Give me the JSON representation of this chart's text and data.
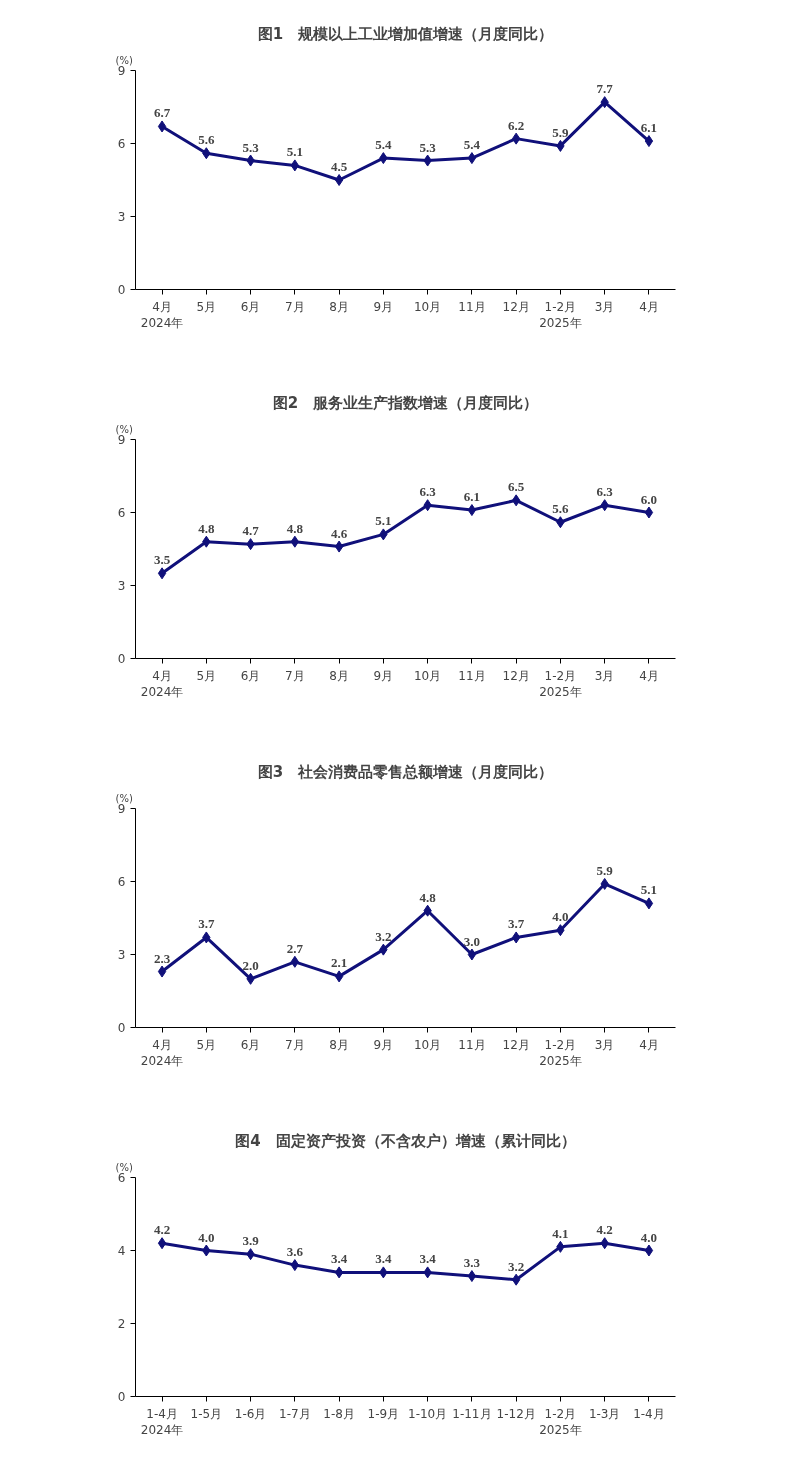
{
  "chart_data": [
    {
      "type": "line",
      "title": "图1　规模以上工业增加值增速（月度同比）",
      "ylabel": "(%)",
      "categories": [
        "4月\n2024年",
        "5月",
        "6月",
        "7月",
        "8月",
        "9月",
        "10月",
        "11月",
        "12月",
        "1-2月\n2025年",
        "3月",
        "4月"
      ],
      "series": [
        {
          "color": "#10107a",
          "values": [
            6.7,
            5.6,
            5.3,
            5.1,
            4.5,
            5.4,
            5.3,
            5.4,
            6.2,
            5.9,
            7.7,
            6.1
          ],
          "value_labels": [
            "6.7",
            "5.6",
            "5.3",
            "5.1",
            "4.5",
            "5.4",
            "5.3",
            "5.4",
            "6.2",
            "5.9",
            "7.7",
            "6.1"
          ]
        }
      ],
      "ylim": [
        0,
        9
      ],
      "yticks": [
        0,
        3,
        6,
        9
      ],
      "grid": false,
      "marker": "diamond",
      "line_style": "solid"
    },
    {
      "type": "line",
      "title": "图2　服务业生产指数增速（月度同比）",
      "ylabel": "(%)",
      "categories": [
        "4月\n2024年",
        "5月",
        "6月",
        "7月",
        "8月",
        "9月",
        "10月",
        "11月",
        "12月",
        "1-2月\n2025年",
        "3月",
        "4月"
      ],
      "series": [
        {
          "color": "#10107a",
          "values": [
            3.5,
            4.8,
            4.7,
            4.8,
            4.6,
            5.1,
            6.3,
            6.1,
            6.5,
            5.6,
            6.3,
            6.0
          ],
          "value_labels": [
            "3.5",
            "4.8",
            "4.7",
            "4.8",
            "4.6",
            "5.1",
            "6.3",
            "6.1",
            "6.5",
            "5.6",
            "6.3",
            "6.0"
          ]
        }
      ],
      "ylim": [
        0,
        9
      ],
      "yticks": [
        0,
        3,
        6,
        9
      ],
      "grid": false,
      "marker": "diamond",
      "line_style": "solid"
    },
    {
      "type": "line",
      "title": "图3　社会消费品零售总额增速（月度同比）",
      "ylabel": "(%)",
      "categories": [
        "4月\n2024年",
        "5月",
        "6月",
        "7月",
        "8月",
        "9月",
        "10月",
        "11月",
        "12月",
        "1-2月\n2025年",
        "3月",
        "4月"
      ],
      "series": [
        {
          "color": "#10107a",
          "values": [
            2.3,
            3.7,
            2.0,
            2.7,
            2.1,
            3.2,
            4.8,
            3.0,
            3.7,
            4.0,
            5.9,
            5.1
          ],
          "value_labels": [
            "2.3",
            "3.7",
            "2.0",
            "2.7",
            "2.1",
            "3.2",
            "4.8",
            "3.0",
            "3.7",
            "4.0",
            "5.9",
            "5.1"
          ]
        }
      ],
      "ylim": [
        0,
        9
      ],
      "yticks": [
        0,
        3,
        6,
        9
      ],
      "grid": false,
      "marker": "diamond",
      "line_style": "solid"
    },
    {
      "type": "line",
      "title": "图4　固定资产投资（不含农户）增速（累计同比）",
      "ylabel": "(%)",
      "categories": [
        "1-4月\n2024年",
        "1-5月",
        "1-6月",
        "1-7月",
        "1-8月",
        "1-9月",
        "1-10月",
        "1-11月",
        "1-12月",
        "1-2月\n2025年",
        "1-3月",
        "1-4月"
      ],
      "series": [
        {
          "color": "#10107a",
          "values": [
            4.2,
            4.0,
            3.9,
            3.6,
            3.4,
            3.4,
            3.4,
            3.3,
            3.2,
            4.1,
            4.2,
            4.0
          ],
          "value_labels": [
            "4.2",
            "4.0",
            "3.9",
            "3.6",
            "3.4",
            "3.4",
            "3.4",
            "3.3",
            "3.2",
            "4.1",
            "4.2",
            "4.0"
          ]
        }
      ],
      "ylim": [
        0,
        6
      ],
      "yticks": [
        0,
        2,
        4,
        6
      ],
      "grid": false,
      "marker": "diamond",
      "line_style": "solid"
    }
  ]
}
